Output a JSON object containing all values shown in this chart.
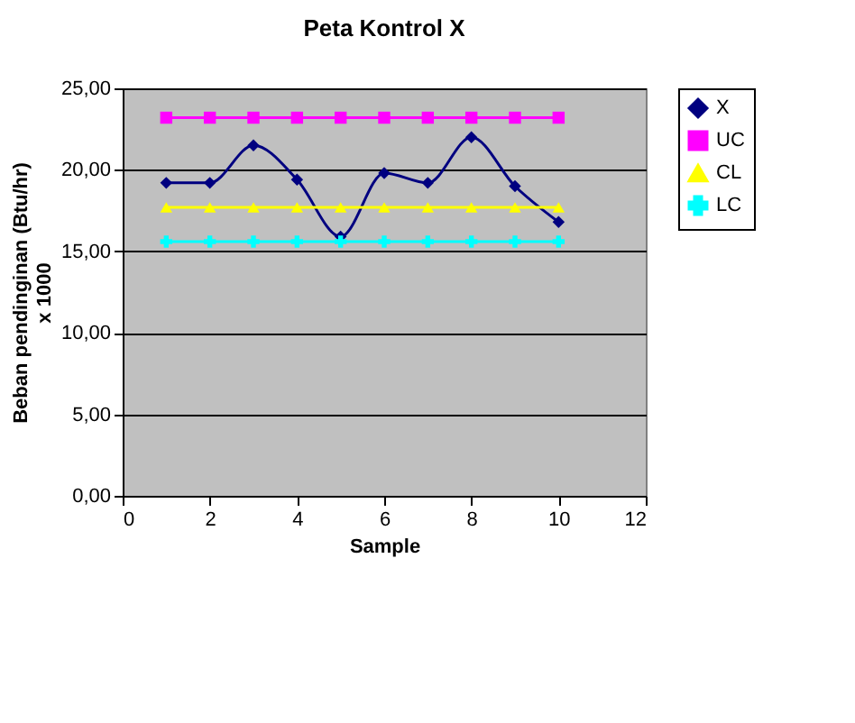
{
  "chart_data": {
    "type": "line",
    "title": "Peta Kontrol X",
    "xlabel": "Sample",
    "ylabel": "Beban pendinginan (Btu/hr)\nx 1000",
    "x": [
      1,
      2,
      3,
      4,
      5,
      6,
      7,
      8,
      9,
      10
    ],
    "series": [
      {
        "name": "X",
        "color": "#000080",
        "marker": "diamond",
        "values": [
          19.2,
          19.2,
          21.5,
          19.4,
          15.9,
          19.8,
          19.2,
          22.0,
          19.0,
          16.8
        ]
      },
      {
        "name": "UC",
        "color": "#ff00ff",
        "marker": "square",
        "values": [
          23.2,
          23.2,
          23.2,
          23.2,
          23.2,
          23.2,
          23.2,
          23.2,
          23.2,
          23.2
        ]
      },
      {
        "name": "CL",
        "color": "#ffff00",
        "marker": "triangle",
        "values": [
          17.7,
          17.7,
          17.7,
          17.7,
          17.7,
          17.7,
          17.7,
          17.7,
          17.7,
          17.7
        ]
      },
      {
        "name": "LC",
        "color": "#00ffff",
        "marker": "cross",
        "values": [
          15.6,
          15.6,
          15.6,
          15.6,
          15.6,
          15.6,
          15.6,
          15.6,
          15.6,
          15.6
        ]
      }
    ],
    "xlim": [
      0,
      12
    ],
    "xticks": [
      0,
      2,
      4,
      6,
      8,
      10,
      12
    ],
    "ylim": [
      0,
      25
    ],
    "yticks": [
      {
        "value": 0,
        "label": "0,00"
      },
      {
        "value": 5,
        "label": "5,00"
      },
      {
        "value": 10,
        "label": "10,00"
      },
      {
        "value": 15,
        "label": "15,00"
      },
      {
        "value": 20,
        "label": "20,00"
      },
      {
        "value": 25,
        "label": "25,00"
      }
    ],
    "grid": "y",
    "legend": "right"
  }
}
